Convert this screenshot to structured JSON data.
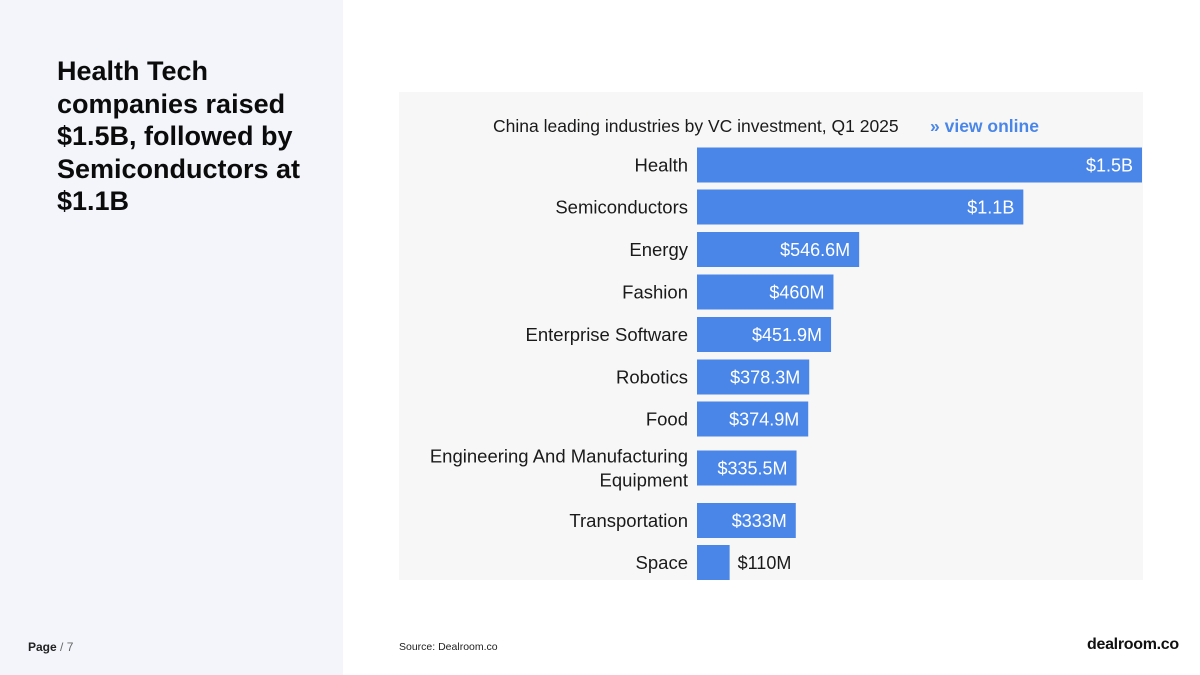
{
  "headline": "Health Tech companies raised $1.5B, followed by Semiconductors at $1.1B",
  "page": {
    "word": "Page",
    "separator": " / ",
    "number": "7"
  },
  "chart_header": {
    "title": "China leading industries by VC investment, Q1 2025",
    "link": "» view online"
  },
  "source": "Source:  Dealroom.co",
  "brand": "dealroom.co",
  "colors": {
    "bar": "#4a86e8",
    "panel": "#f3f5fa",
    "link": "#4a86e8"
  },
  "chart_data": {
    "type": "bar",
    "orientation": "horizontal",
    "title": "China leading industries by VC investment, Q1 2025",
    "unit": "USD millions",
    "categories": [
      "Health",
      "Semiconductors",
      "Energy",
      "Fashion",
      "Enterprise Software",
      "Robotics",
      "Food",
      "Engineering And Manufacturing Equipment",
      "Transportation",
      "Space"
    ],
    "category_lines": [
      [
        "Health"
      ],
      [
        "Semiconductors"
      ],
      [
        "Energy"
      ],
      [
        "Fashion"
      ],
      [
        "Enterprise Software"
      ],
      [
        "Robotics"
      ],
      [
        "Food"
      ],
      [
        "Engineering And Manufacturing",
        "Equipment"
      ],
      [
        "Transportation"
      ],
      [
        "Space"
      ]
    ],
    "values": [
      1500,
      1100,
      546.6,
      460,
      451.9,
      378.3,
      374.9,
      335.5,
      333,
      110
    ],
    "labels": [
      "$1.5B",
      "$1.1B",
      "$546.6M",
      "$460M",
      "$451.9M",
      "$378.3M",
      "$374.9M",
      "$335.5M",
      "$333M",
      "$110M"
    ],
    "xlim": [
      0,
      1500
    ],
    "xlabel": "",
    "ylabel": ""
  }
}
